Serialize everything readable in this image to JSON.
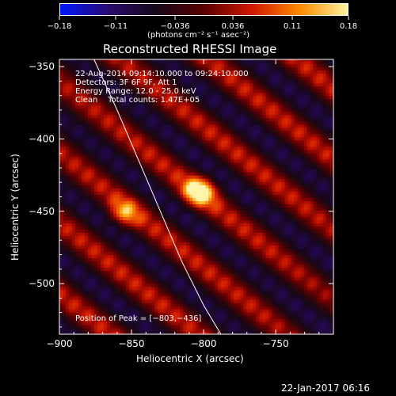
{
  "chart_data": {
    "type": "heatmap",
    "title": "Reconstructed RHESSI Image",
    "xlabel": "Heliocentric X (arcsec)",
    "ylabel": "Heliocentric Y (arcsec)",
    "xlim": [
      -900,
      -710
    ],
    "ylim": [
      -535,
      -345
    ],
    "xticks": [
      -900,
      -850,
      -800,
      -750
    ],
    "yticks": [
      -350,
      -400,
      -450,
      -500
    ],
    "xtick_labels": [
      "−900",
      "−850",
      "−800",
      "−750"
    ],
    "ytick_labels": [
      "−350",
      "−400",
      "−450",
      "−500"
    ],
    "colorbar": {
      "range": [
        -0.18,
        0.18
      ],
      "ticks": [
        -0.18,
        -0.11,
        -0.036,
        0.036,
        0.11,
        0.18
      ],
      "tick_labels": [
        "−0.18",
        "−0.11",
        "−0.036",
        "0.036",
        "0.11",
        "0.18"
      ],
      "unit_label": "(photons cm⁻² s⁻¹ asec⁻²)",
      "colors": [
        "#0018ff",
        "#2a0a70",
        "#160818",
        "#5a0000",
        "#d01800",
        "#ff8a00",
        "#fff3a0"
      ]
    },
    "sources": [
      {
        "x": -803,
        "y": -436,
        "peak": 0.18
      },
      {
        "x": -855,
        "y": -451,
        "peak": 0.12
      }
    ],
    "limb_curve": [
      [
        -876,
        -345
      ],
      [
        -860,
        -380
      ],
      [
        -845,
        -415
      ],
      [
        -830,
        -450
      ],
      [
        -815,
        -485
      ],
      [
        -800,
        -515
      ],
      [
        -788,
        -535
      ]
    ],
    "annotations": {
      "time_range": "22-Aug-2014 09:14:10.000 to 09:24:10.000",
      "detectors": "Detectors: 3F 6F 9F, Att 1",
      "energy": "Energy Range: 12.0 - 25.0 keV",
      "method": "Clean    Total counts: 1.47E+05",
      "peak": "Position of Peak = [−803,−436]"
    },
    "footer_date": "22-Jan-2017 06:16"
  }
}
